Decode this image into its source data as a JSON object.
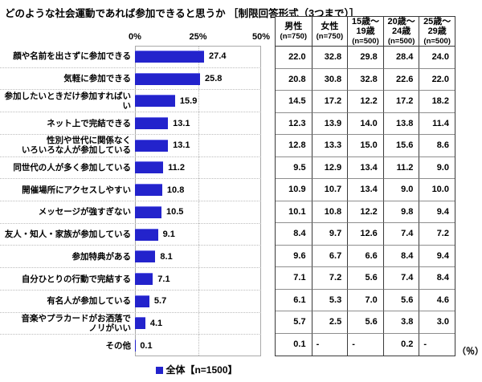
{
  "title": "どのような社会運動であれば参加できると思うか ［制限回答形式（3つまで）］",
  "chart_data": {
    "type": "bar",
    "orientation": "horizontal",
    "title": "どのような社会運動であれば参加できると思うか",
    "subtitle": "制限回答形式（3つまで）",
    "categories": [
      "顔や名前を出さずに参加できる",
      "気軽に参加できる",
      "参加したいときだけ参加すればいい",
      "ネット上で完結できる",
      "性別や世代に関係なく\nいろいろな人が参加している",
      "同世代の人が多く参加している",
      "開催場所にアクセスしやすい",
      "メッセージが強すぎない",
      "友人・知人・家族が参加している",
      "参加特典がある",
      "自分ひとりの行動で完結する",
      "有名人が参加している",
      "音楽やプラカードがお洒落で\nノリがいい",
      "その他"
    ],
    "values": [
      27.4,
      25.8,
      15.9,
      13.1,
      13.1,
      11.2,
      10.8,
      10.5,
      9.1,
      8.1,
      7.1,
      5.7,
      4.1,
      0.1
    ],
    "xlim": [
      0,
      50
    ],
    "ticks": [
      "0%",
      "25%",
      "50%"
    ],
    "grid": "vertical dotted at 25% and 50%",
    "legend": "全体【n=1500】",
    "legend_position": "bottom",
    "bar_color": "#2323cc"
  },
  "table": {
    "columns": [
      {
        "label": "男性",
        "n": "(n=750)"
      },
      {
        "label": "女性",
        "n": "(n=750)"
      },
      {
        "label": "15歳～\n19歳",
        "n": "(n=500)"
      },
      {
        "label": "20歳～\n24歳",
        "n": "(n=500)"
      },
      {
        "label": "25歳～\n29歳",
        "n": "(n=500)"
      }
    ],
    "rows": [
      [
        "22.0",
        "32.8",
        "29.8",
        "28.4",
        "24.0"
      ],
      [
        "20.8",
        "30.8",
        "32.8",
        "22.6",
        "22.0"
      ],
      [
        "14.5",
        "17.2",
        "12.2",
        "17.2",
        "18.2"
      ],
      [
        "12.3",
        "13.9",
        "14.0",
        "13.8",
        "11.4"
      ],
      [
        "12.8",
        "13.3",
        "15.0",
        "15.6",
        "8.6"
      ],
      [
        "9.5",
        "12.9",
        "13.4",
        "11.2",
        "9.0"
      ],
      [
        "10.9",
        "10.7",
        "13.4",
        "9.0",
        "10.0"
      ],
      [
        "10.1",
        "10.8",
        "12.2",
        "9.8",
        "9.4"
      ],
      [
        "8.4",
        "9.7",
        "12.6",
        "7.4",
        "7.2"
      ],
      [
        "9.6",
        "6.7",
        "6.6",
        "8.4",
        "9.4"
      ],
      [
        "7.1",
        "7.2",
        "5.6",
        "7.4",
        "8.4"
      ],
      [
        "6.1",
        "5.3",
        "7.0",
        "5.6",
        "4.6"
      ],
      [
        "5.7",
        "2.5",
        "5.6",
        "3.8",
        "3.0"
      ],
      [
        "0.1",
        "-",
        "-",
        "0.2",
        "-"
      ]
    ],
    "unit": "（％）"
  }
}
